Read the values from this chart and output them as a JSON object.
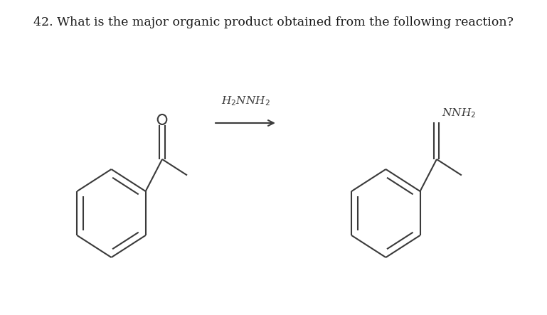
{
  "title": "42. What is the major organic product obtained from the following reaction?",
  "title_fontsize": 12.5,
  "background": "#ffffff",
  "line_color": "#3a3a3a",
  "line_width": 1.5,
  "fig_width": 7.69,
  "fig_height": 4.43,
  "reagent_label": "H$_2$NNH$_2$",
  "product_label": "NNH$_2$"
}
